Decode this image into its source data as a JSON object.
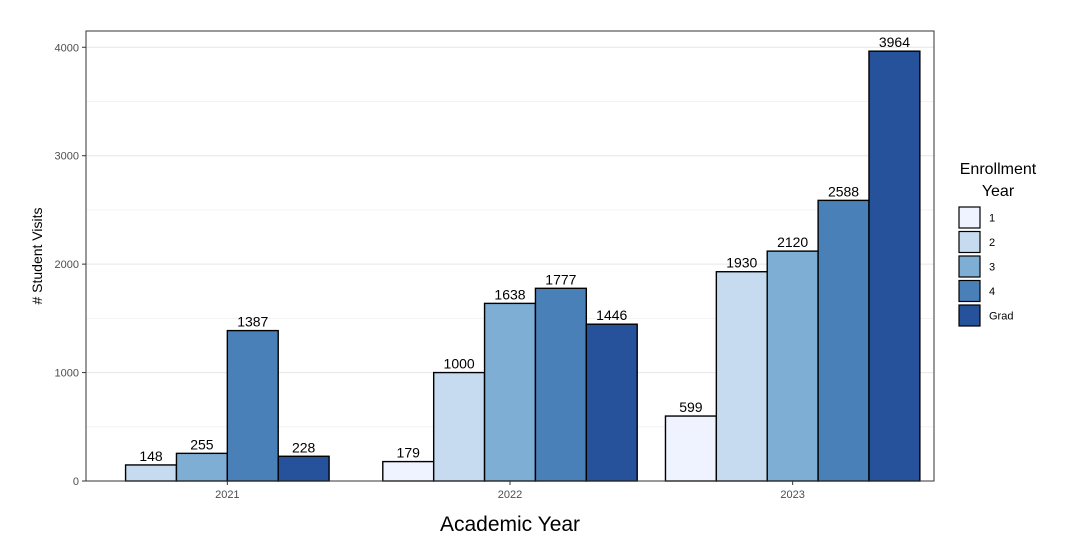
{
  "chart_data": {
    "type": "bar",
    "xlabel": "Academic Year",
    "ylabel": "# Student Visits",
    "ylim": [
      0,
      4150
    ],
    "yticks": [
      0,
      1000,
      2000,
      3000,
      4000
    ],
    "grid": true,
    "legend": {
      "title": [
        "Enrollment",
        "Year"
      ],
      "placement": "right"
    },
    "categories": [
      "2021",
      "2022",
      "2023"
    ],
    "series": [
      {
        "name": "1",
        "color": "#eff3ff",
        "values": [
          null,
          179,
          599
        ]
      },
      {
        "name": "2",
        "color": "#c6dbef",
        "values": [
          148,
          1000,
          1930
        ]
      },
      {
        "name": "3",
        "color": "#7eaed4",
        "values": [
          255,
          1638,
          2120
        ]
      },
      {
        "name": "4",
        "color": "#4a80b8",
        "values": [
          1387,
          1777,
          2588
        ]
      },
      {
        "name": "Grad",
        "color": "#26519b",
        "values": [
          228,
          1446,
          3964
        ]
      }
    ]
  }
}
